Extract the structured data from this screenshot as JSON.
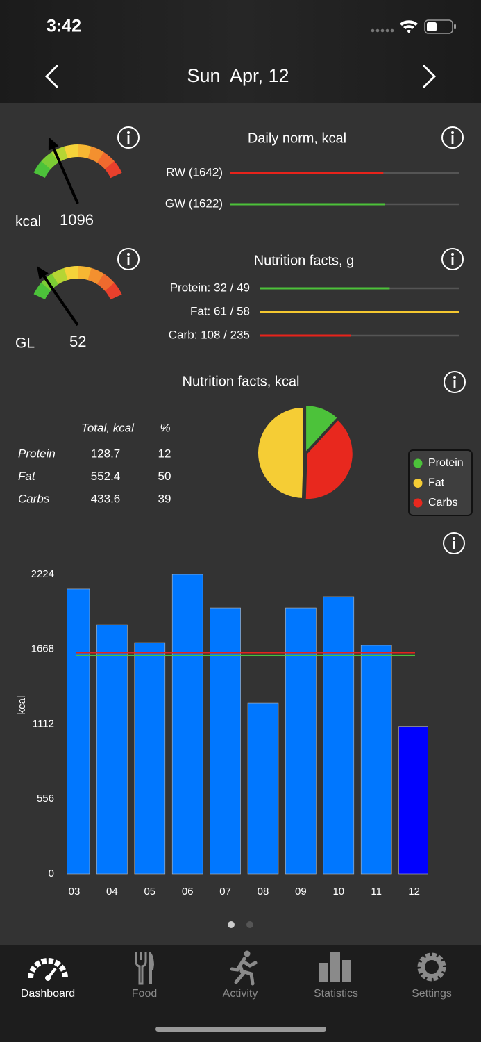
{
  "status_bar": {
    "time": "3:42"
  },
  "header": {
    "date": "Sun  Apr, 12"
  },
  "gauges": [
    {
      "label": "kcal",
      "value": 1096
    },
    {
      "label": "GL",
      "value": 52
    }
  ],
  "daily_norm": {
    "title": "Daily norm, kcal",
    "bars": [
      {
        "label": "RW (1642)",
        "target": 1642,
        "color": "#e8231b"
      },
      {
        "label": "GW (1622)",
        "target": 1622,
        "color": "#4cc23a"
      }
    ]
  },
  "nutrition_g": {
    "title": "Nutrition facts, g",
    "bars": [
      {
        "label": "Protein: 32 / 49",
        "value": 32,
        "target": 49,
        "color": "#4cc23a"
      },
      {
        "label": "Fat: 61 / 58",
        "value": 61,
        "target": 58,
        "color": "#f5c830"
      },
      {
        "label": "Carb: 108 / 235",
        "value": 108,
        "target": 235,
        "color": "#e8231b"
      }
    ]
  },
  "nutrition_kcal": {
    "title": "Nutrition facts, kcal",
    "headers": [
      "Total, kcal",
      "%"
    ],
    "rows": [
      {
        "name": "Protein",
        "total": 128.7,
        "percent": 12
      },
      {
        "name": "Fat",
        "total": 552.4,
        "percent": 50
      },
      {
        "name": "Carbs",
        "total": 433.6,
        "percent": 39
      }
    ],
    "legend": [
      {
        "name": "Protein",
        "color": "#4cc23a"
      },
      {
        "name": "Fat",
        "color": "#f5cd35"
      },
      {
        "name": "Carbs",
        "color": "#e8281e"
      }
    ]
  },
  "chart_data": {
    "type": "bar",
    "y_label": "kcal",
    "categories": [
      "03",
      "04",
      "05",
      "06",
      "07",
      "08",
      "09",
      "10",
      "11",
      "12"
    ],
    "values": [
      2116,
      1852,
      1718,
      2224,
      1976,
      1269,
      1976,
      2059,
      1698,
      1096
    ],
    "colors": [
      "#0077ff",
      "#0077ff",
      "#0077ff",
      "#0077ff",
      "#0077ff",
      "#0077ff",
      "#0077ff",
      "#0077ff",
      "#0077ff",
      "#0000ff"
    ],
    "ylim": [
      0,
      2224
    ],
    "yticks": [
      0,
      556,
      1112,
      1668,
      2224
    ],
    "ref_lines": [
      {
        "value": 1642,
        "color": "#e8231b"
      },
      {
        "value": 1622,
        "color": "#4cc23a"
      }
    ]
  },
  "tabs": [
    {
      "label": "Dashboard",
      "active": true
    },
    {
      "label": "Food",
      "active": false
    },
    {
      "label": "Activity",
      "active": false
    },
    {
      "label": "Statistics",
      "active": false
    },
    {
      "label": "Settings",
      "active": false
    }
  ]
}
